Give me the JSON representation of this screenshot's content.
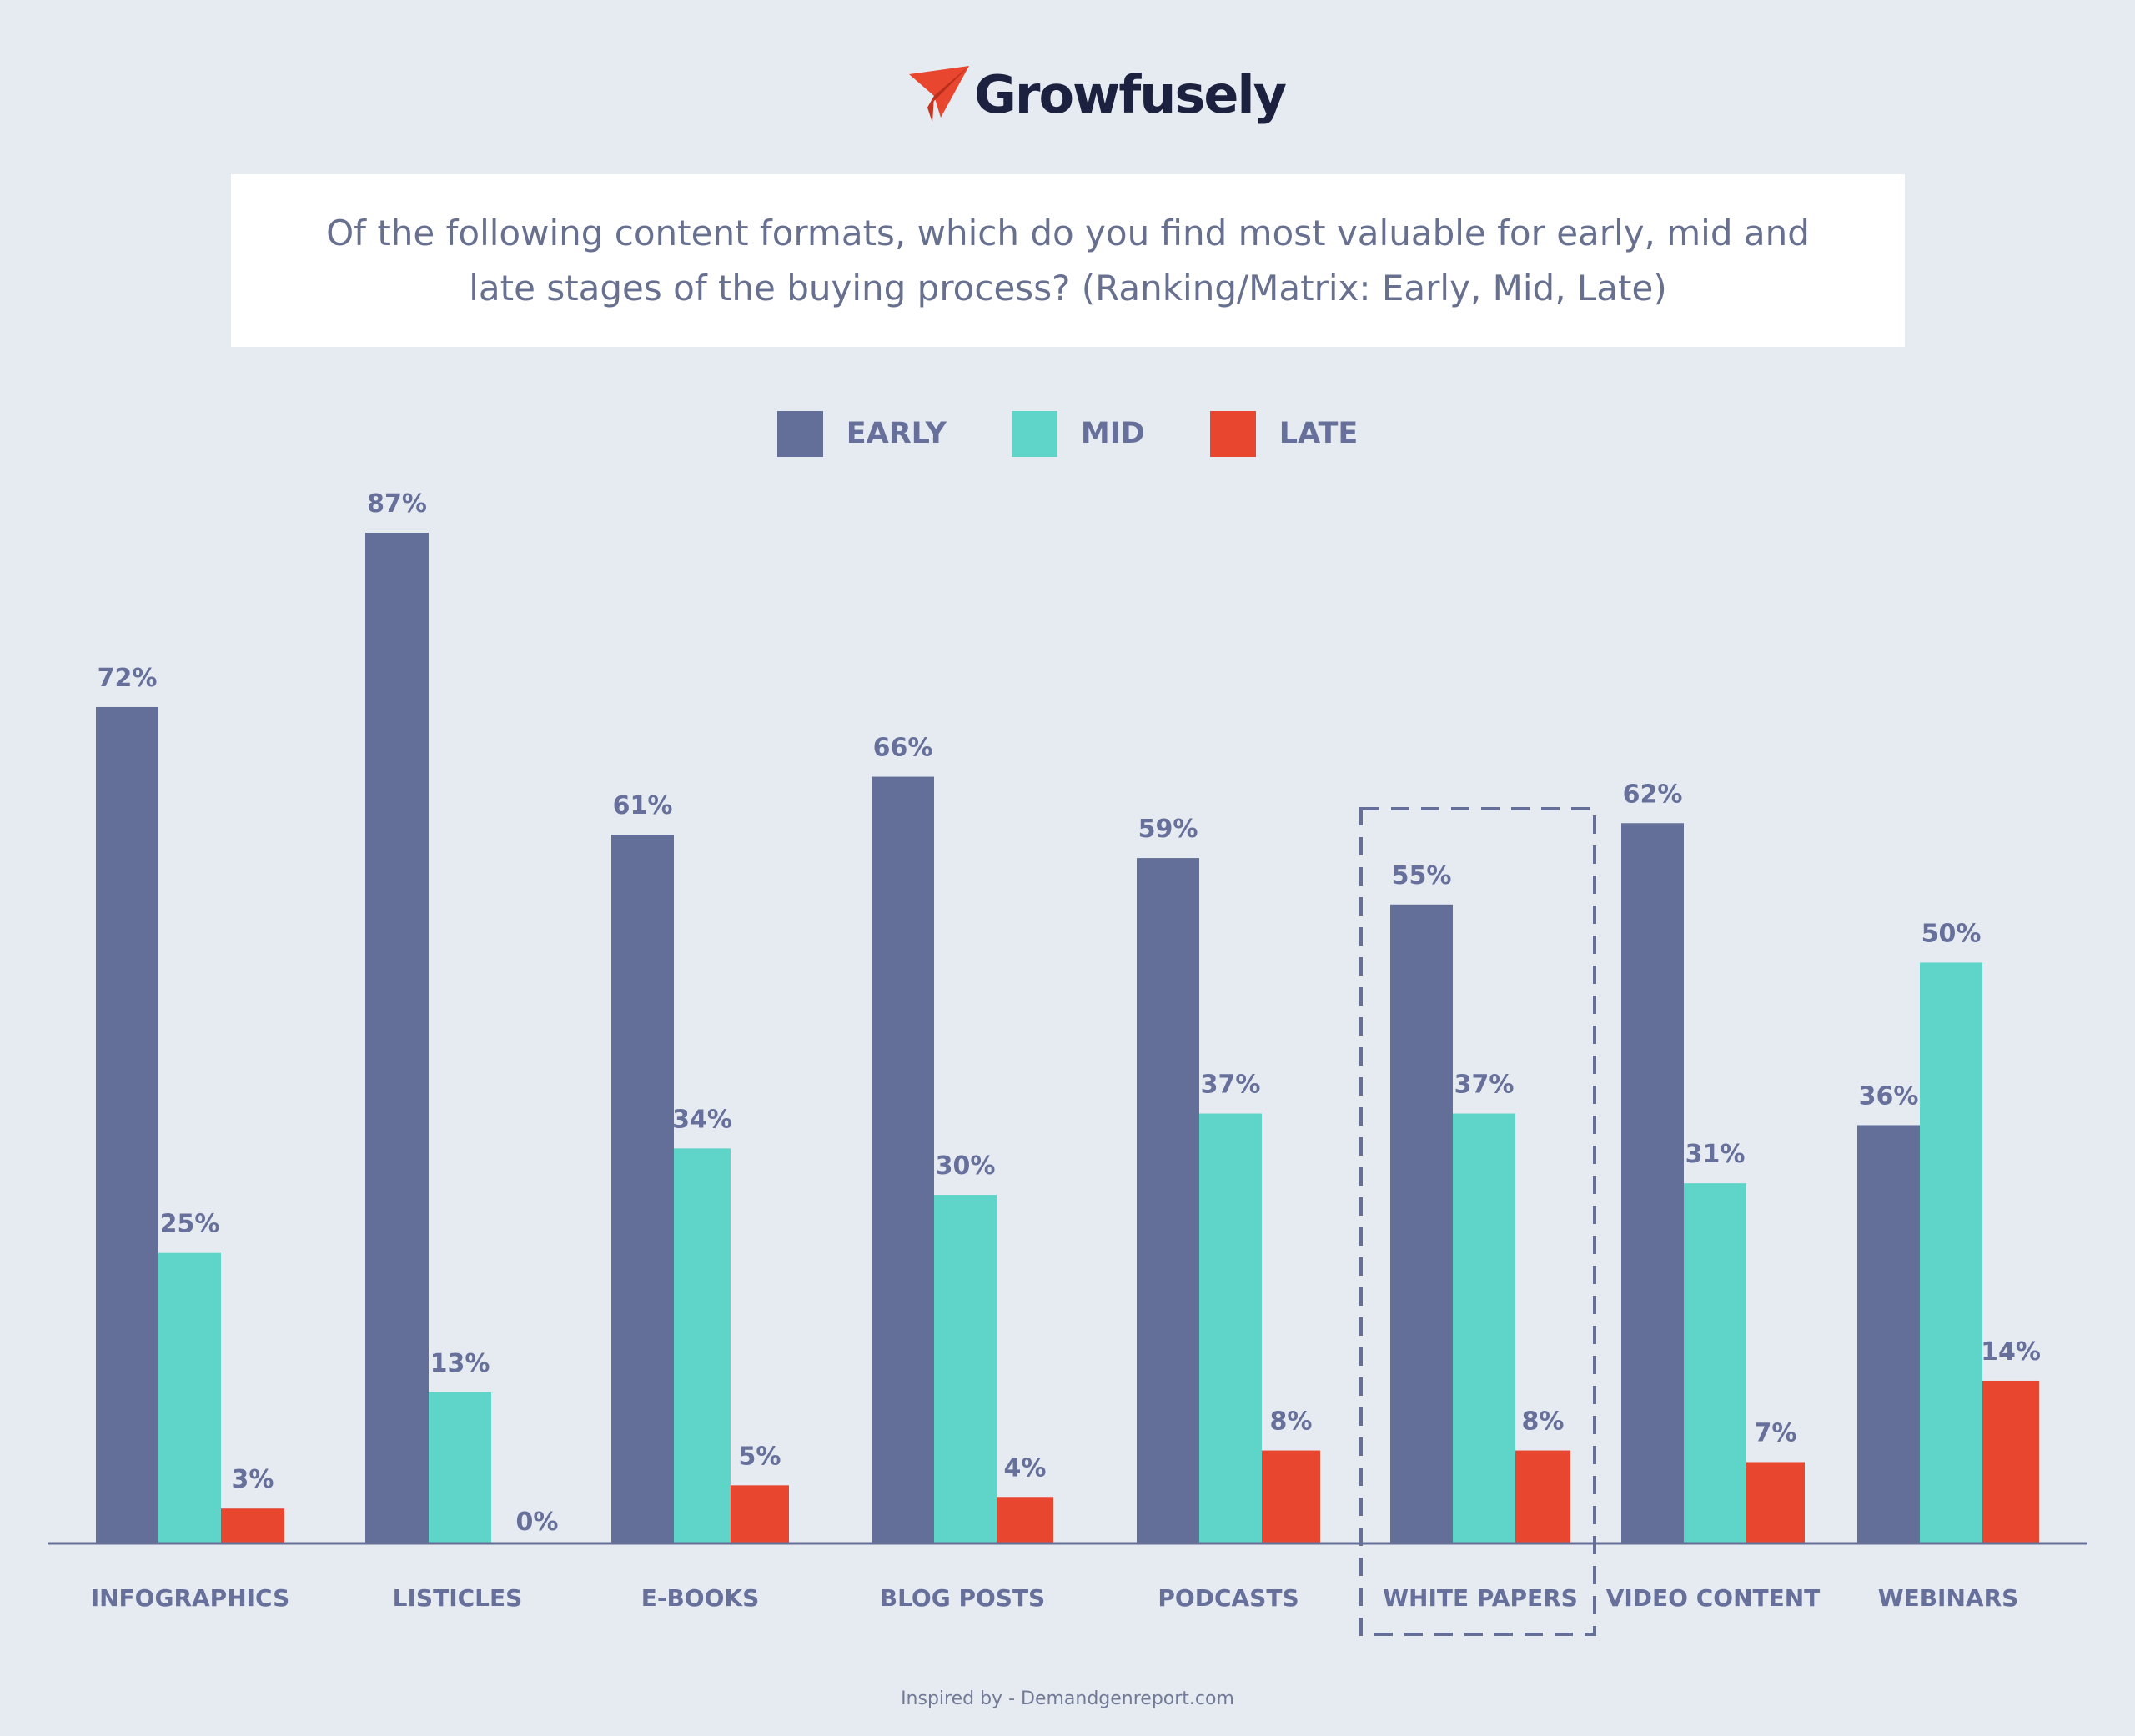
{
  "brand": {
    "name": "Growfusely",
    "icon": "paper-plane-icon"
  },
  "question": "Of the following content formats, which do you find most valuable for early, mid and late stages of the buying process? (Ranking/Matrix: Early, Mid, Late)",
  "legend": [
    {
      "label": "EARLY",
      "color": "#636f98"
    },
    {
      "label": "MID",
      "color": "#5fd4c9"
    },
    {
      "label": "LATE",
      "color": "#e8462f"
    }
  ],
  "footer": "Inspired by - Demandgenreport.com",
  "chart_data": {
    "type": "bar",
    "title": "Of the following content formats, which do you find most valuable for early, mid and late stages of the buying process? (Ranking/Matrix: Early, Mid, Late)",
    "categories": [
      "INFOGRAPHICS",
      "LISTICLES",
      "E-BOOKS",
      "BLOG POSTS",
      "PODCASTS",
      "WHITE PAPERS",
      "VIDEO CONTENT",
      "WEBINARS"
    ],
    "series": [
      {
        "name": "EARLY",
        "color": "#636f98",
        "values": [
          72,
          87,
          61,
          66,
          59,
          55,
          62,
          36
        ]
      },
      {
        "name": "MID",
        "color": "#5fd4c9",
        "values": [
          25,
          13,
          34,
          30,
          37,
          37,
          31,
          50
        ]
      },
      {
        "name": "LATE",
        "color": "#e8462f",
        "values": [
          3,
          0,
          5,
          4,
          8,
          8,
          7,
          14
        ]
      }
    ],
    "value_suffix": "%",
    "highlighted_category": "WHITE PAPERS",
    "ylim": [
      0,
      100
    ],
    "grid": false,
    "legend_position": "top-center"
  }
}
